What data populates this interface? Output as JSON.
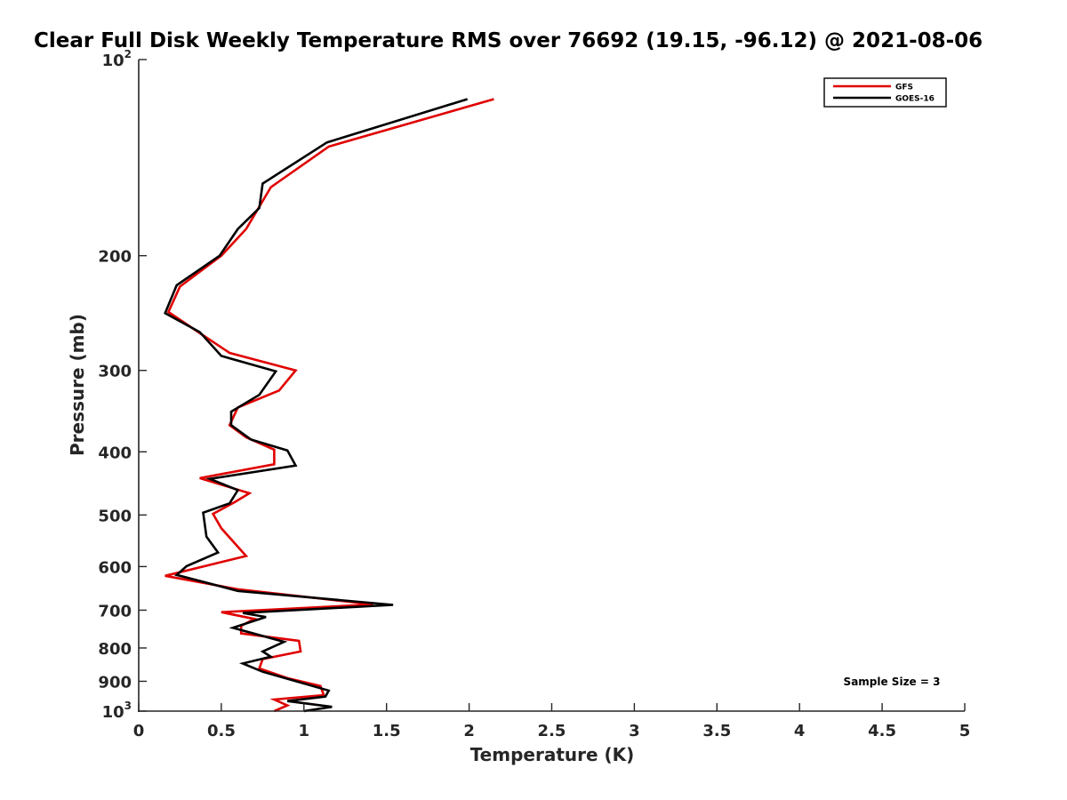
{
  "chart_data": {
    "type": "line",
    "title": "Clear Full Disk Weekly Temperature RMS over 76692 (19.15, -96.12) @ 2021-08-06",
    "xlabel": "Temperature (K)",
    "ylabel": "Pressure (mb)",
    "xlim": [
      0,
      5
    ],
    "ylim": [
      100,
      1000
    ],
    "y_scale": "log",
    "y_reversed": true,
    "grid": false,
    "legend_position": "top-right",
    "x_ticks": [
      {
        "value": 0,
        "label": "0"
      },
      {
        "value": 0.5,
        "label": "0.5"
      },
      {
        "value": 1,
        "label": "1"
      },
      {
        "value": 1.5,
        "label": "1.5"
      },
      {
        "value": 2,
        "label": "2"
      },
      {
        "value": 2.5,
        "label": "2.5"
      },
      {
        "value": 3,
        "label": "3"
      },
      {
        "value": 3.5,
        "label": "3.5"
      },
      {
        "value": 4,
        "label": "4"
      },
      {
        "value": 4.5,
        "label": "4.5"
      },
      {
        "value": 5,
        "label": "5"
      }
    ],
    "y_ticks": [
      {
        "value": 100,
        "base": "10",
        "exp": "2"
      },
      {
        "value": 200,
        "base": "200",
        "exp": ""
      },
      {
        "value": 300,
        "base": "300",
        "exp": ""
      },
      {
        "value": 400,
        "base": "400",
        "exp": ""
      },
      {
        "value": 500,
        "base": "500",
        "exp": ""
      },
      {
        "value": 600,
        "base": "600",
        "exp": ""
      },
      {
        "value": 700,
        "base": "700",
        "exp": ""
      },
      {
        "value": 800,
        "base": "800",
        "exp": ""
      },
      {
        "value": 900,
        "base": "900",
        "exp": ""
      },
      {
        "value": 1000,
        "base": "10",
        "exp": "3"
      }
    ],
    "annotation": "Sample Size = 3",
    "series": [
      {
        "name": "GFS",
        "color": "#e00000",
        "points": [
          [
            2.15,
            115
          ],
          [
            1.15,
            136
          ],
          [
            0.8,
            157
          ],
          [
            0.65,
            182
          ],
          [
            0.5,
            200
          ],
          [
            0.25,
            223
          ],
          [
            0.18,
            244
          ],
          [
            0.38,
            264
          ],
          [
            0.55,
            282
          ],
          [
            0.95,
            300
          ],
          [
            0.85,
            322
          ],
          [
            0.6,
            342
          ],
          [
            0.55,
            364
          ],
          [
            0.65,
            380
          ],
          [
            0.82,
            397
          ],
          [
            0.82,
            418
          ],
          [
            0.37,
            439
          ],
          [
            0.67,
            463
          ],
          [
            0.58,
            478
          ],
          [
            0.45,
            498
          ],
          [
            0.5,
            524
          ],
          [
            0.65,
            578
          ],
          [
            0.16,
            620
          ],
          [
            0.6,
            650
          ],
          [
            1.42,
            686
          ],
          [
            0.5,
            705
          ],
          [
            0.7,
            722
          ],
          [
            0.62,
            740
          ],
          [
            0.62,
            760
          ],
          [
            0.97,
            780
          ],
          [
            0.98,
            810
          ],
          [
            0.75,
            832
          ],
          [
            0.73,
            860
          ],
          [
            0.9,
            890
          ],
          [
            1.1,
            915
          ],
          [
            1.12,
            945
          ],
          [
            0.82,
            960
          ],
          [
            0.9,
            980
          ],
          [
            0.82,
            1000
          ]
        ]
      },
      {
        "name": "GOES-16",
        "color": "#000000",
        "points": [
          [
            1.99,
            115
          ],
          [
            1.14,
            134
          ],
          [
            0.75,
            155
          ],
          [
            0.73,
            169
          ],
          [
            0.6,
            182
          ],
          [
            0.49,
            200
          ],
          [
            0.23,
            222
          ],
          [
            0.16,
            245
          ],
          [
            0.37,
            262
          ],
          [
            0.5,
            285
          ],
          [
            0.83,
            301
          ],
          [
            0.73,
            327
          ],
          [
            0.56,
            347
          ],
          [
            0.56,
            364
          ],
          [
            0.68,
            383
          ],
          [
            0.9,
            398
          ],
          [
            0.95,
            420
          ],
          [
            0.43,
            440
          ],
          [
            0.6,
            458
          ],
          [
            0.55,
            480
          ],
          [
            0.39,
            496
          ],
          [
            0.41,
            540
          ],
          [
            0.48,
            571
          ],
          [
            0.29,
            599
          ],
          [
            0.23,
            618
          ],
          [
            0.6,
            654
          ],
          [
            1.54,
            687
          ],
          [
            0.63,
            707
          ],
          [
            0.77,
            717
          ],
          [
            0.57,
            745
          ],
          [
            0.88,
            783
          ],
          [
            0.75,
            810
          ],
          [
            0.8,
            825
          ],
          [
            0.63,
            845
          ],
          [
            0.75,
            870
          ],
          [
            1.15,
            930
          ],
          [
            1.13,
            950
          ],
          [
            0.9,
            965
          ],
          [
            1.17,
            985
          ],
          [
            1.0,
            1000
          ]
        ]
      }
    ]
  }
}
